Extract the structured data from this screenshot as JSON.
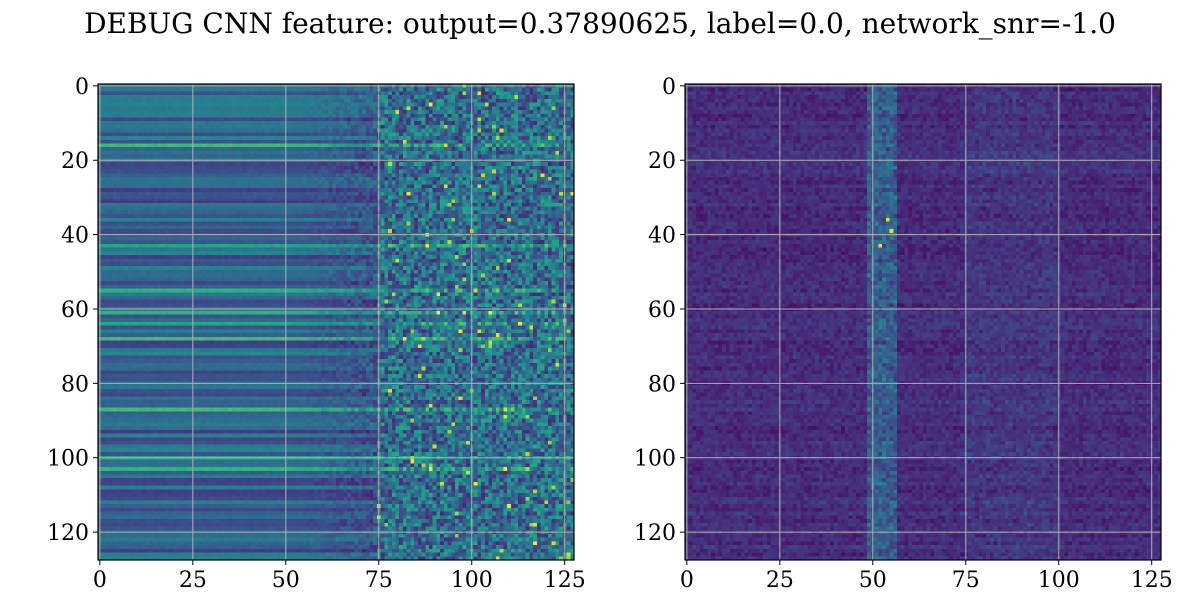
{
  "figure": {
    "title": "DEBUG CNN feature: output=0.37890625, label=0.0, network_snr=-1.0"
  },
  "colormap": {
    "name": "viridis",
    "stops": [
      "#440154",
      "#482878",
      "#3e4989",
      "#31688e",
      "#26828e",
      "#1f9e89",
      "#35b779",
      "#6ece58",
      "#b5de2b",
      "#fde725"
    ]
  },
  "chart_data": [
    {
      "type": "heatmap",
      "title": "",
      "xlabel": "",
      "ylabel": "",
      "rows": 128,
      "cols": 128,
      "xlim": [
        0,
        127
      ],
      "ylim": [
        127,
        0
      ],
      "grid": true,
      "xticks": [
        0,
        25,
        50,
        75,
        100,
        125
      ],
      "yticks": [
        0,
        20,
        40,
        60,
        80,
        100,
        120
      ],
      "regions": [
        {
          "cols": [
            0,
            50
          ],
          "level": "uniform per row, low to medium",
          "mean": 0.28
        },
        {
          "cols": [
            50,
            75
          ],
          "level": "gradual transition, noisier",
          "mean": 0.32
        },
        {
          "cols": [
            75,
            127
          ],
          "level": "high-variance noise",
          "mean": 0.36
        }
      ],
      "bright_rows": [
        16,
        43,
        55,
        61,
        64,
        68,
        87,
        100,
        103
      ],
      "hot_spots": [
        [
          88,
          43
        ],
        [
          91,
          61
        ],
        [
          105,
          61
        ],
        [
          113,
          64
        ],
        [
          82,
          68
        ],
        [
          89,
          103
        ],
        [
          109,
          103
        ]
      ]
    },
    {
      "type": "heatmap",
      "title": "",
      "xlabel": "",
      "ylabel": "",
      "rows": 128,
      "cols": 128,
      "xlim": [
        0,
        127
      ],
      "ylim": [
        127,
        0
      ],
      "grid": true,
      "xticks": [
        0,
        25,
        50,
        75,
        100,
        125
      ],
      "yticks": [
        0,
        20,
        40,
        60,
        80,
        100,
        120
      ],
      "background_level": 0.08,
      "ridge": {
        "col_start": 49,
        "col_end": 56,
        "description": "brighter vertical band near x≈50–56"
      },
      "hot_spots": [
        [
          55,
          39
        ],
        [
          54,
          36
        ],
        [
          52,
          43
        ]
      ]
    }
  ]
}
